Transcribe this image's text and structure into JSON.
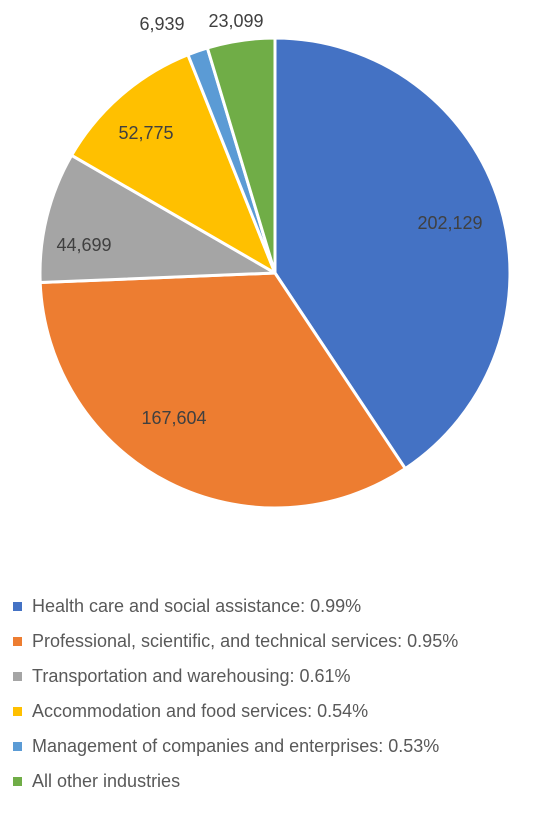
{
  "chart_data": {
    "type": "pie",
    "title": "",
    "start_angle_deg": 0,
    "direction": "clockwise",
    "slices": [
      {
        "label": "Health care and social assistance: 0.99%",
        "value": 202129,
        "display": "202,129",
        "color": "#4472C4"
      },
      {
        "label": "Professional, scientific, and technical services: 0.95%",
        "value": 167604,
        "display": "167,604",
        "color": "#ED7D31"
      },
      {
        "label": "Transportation and warehousing: 0.61%",
        "value": 44699,
        "display": "44,699",
        "color": "#A5A5A5"
      },
      {
        "label": "Accommodation and food services: 0.54%",
        "value": 52775,
        "display": "52,775",
        "color": "#FFC000"
      },
      {
        "label": "Management of companies and enterprises: 0.53%",
        "value": 6939,
        "display": "6,939",
        "color": "#5B9BD5"
      },
      {
        "label": "All other industries",
        "value": 23099,
        "display": "23,099",
        "color": "#70AD47"
      }
    ],
    "legend_position": "bottom"
  }
}
